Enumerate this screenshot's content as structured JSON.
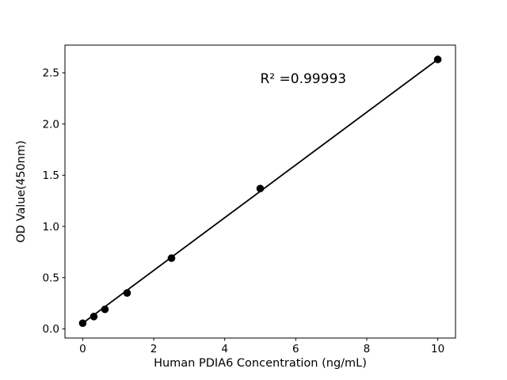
{
  "chart_data": {
    "type": "scatter",
    "title": "",
    "xlabel": "Human PDIA6 Concentration (ng/mL)",
    "ylabel": "OD Value(450nm)",
    "annotation": {
      "text": "R² =0.99993",
      "x": 5.0,
      "y": 2.4
    },
    "x": [
      0,
      0.3125,
      0.625,
      1.25,
      2.5,
      5,
      10
    ],
    "y": [
      0.055,
      0.12,
      0.19,
      0.35,
      0.69,
      1.37,
      2.63
    ],
    "fit_line": {
      "x1": 0,
      "y1": 0.055,
      "x2": 10,
      "y2": 2.63
    },
    "xticks": [
      0,
      2,
      4,
      6,
      8,
      10
    ],
    "xtick_labels": [
      "0",
      "2",
      "4",
      "6",
      "8",
      "10"
    ],
    "yticks": [
      0.0,
      0.5,
      1.0,
      1.5,
      2.0,
      2.5
    ],
    "ytick_labels": [
      "0.0",
      "0.5",
      "1.0",
      "1.5",
      "2.0",
      "2.5"
    ],
    "xlim": [
      -0.5,
      10.5
    ],
    "ylim": [
      -0.09,
      2.77
    ],
    "grid": false,
    "legend_position": "none",
    "colors": {
      "marker": "#000000",
      "line": "#000000",
      "axes": "#000000",
      "text": "#000000",
      "background": "#ffffff"
    }
  }
}
